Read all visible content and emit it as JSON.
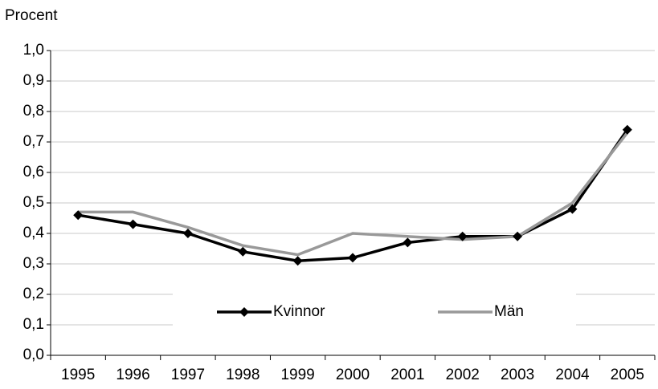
{
  "chart_data": {
    "type": "line",
    "y_label": "Procent",
    "categories": [
      "1995",
      "1996",
      "1997",
      "1998",
      "1999",
      "2000",
      "2001",
      "2002",
      "2003",
      "2004",
      "2005"
    ],
    "series": [
      {
        "name": "Kvinnor",
        "color": "#000000",
        "marker": "diamond",
        "values": [
          0.46,
          0.43,
          0.4,
          0.34,
          0.31,
          0.32,
          0.37,
          0.39,
          0.39,
          0.48,
          0.74
        ]
      },
      {
        "name": "Män",
        "color": "#999999",
        "values": [
          0.47,
          0.47,
          0.42,
          0.36,
          0.33,
          0.4,
          0.39,
          0.38,
          0.39,
          0.5,
          0.73
        ]
      }
    ],
    "ylim": [
      0,
      1
    ],
    "yticks": [
      {
        "value": 0,
        "label": "0,0"
      },
      {
        "value": 0.1,
        "label": "0,1"
      },
      {
        "value": 0.2,
        "label": "0,2"
      },
      {
        "value": 0.3,
        "label": "0,3"
      },
      {
        "value": 0.4,
        "label": "0,4"
      },
      {
        "value": 0.5,
        "label": "0,5"
      },
      {
        "value": 0.6,
        "label": "0,6"
      },
      {
        "value": 0.7,
        "label": "0,7"
      },
      {
        "value": 0.8,
        "label": "0,8"
      },
      {
        "value": 0.9,
        "label": "0,9"
      },
      {
        "value": 1,
        "label": "1,0"
      }
    ],
    "grid": true,
    "legend": "bottom-center"
  }
}
